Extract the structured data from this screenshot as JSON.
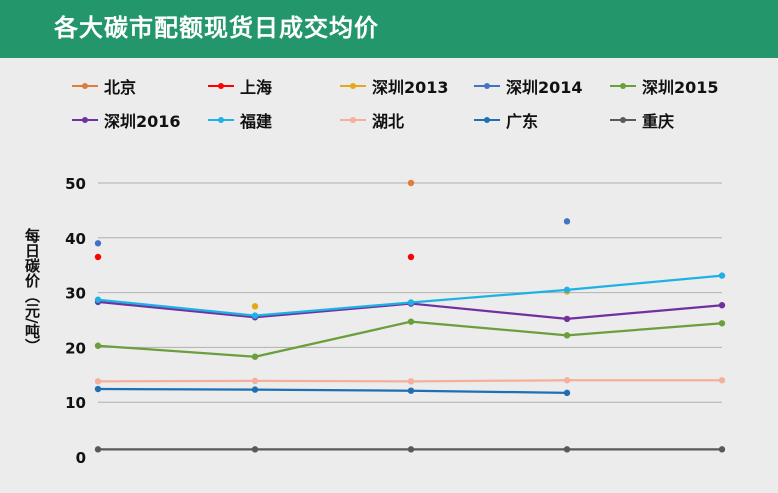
{
  "title": "各大碳市配额现货日成交均价",
  "chart_data": {
    "type": "line",
    "title": "各大碳市配额现货日成交均价",
    "xlabel": "",
    "ylabel": "每日碳价（元/吨）",
    "ylim": [
      0,
      50
    ],
    "yticks": [
      0,
      10,
      20,
      30,
      40,
      50
    ],
    "grid": true,
    "legend_position": "top",
    "x": [
      1,
      2,
      3,
      4,
      5
    ],
    "series": [
      {
        "name": "北京",
        "color": "#e07b39",
        "values": [
          null,
          null,
          50,
          null,
          null
        ]
      },
      {
        "name": "上海",
        "color": "#ff0000",
        "values": [
          36.5,
          null,
          36.5,
          null,
          null
        ]
      },
      {
        "name": "深圳2013",
        "color": "#e6a817",
        "values": [
          null,
          27.5,
          null,
          30.2,
          null
        ]
      },
      {
        "name": "深圳2014",
        "color": "#4472c4",
        "values": [
          39,
          null,
          null,
          43,
          null
        ]
      },
      {
        "name": "深圳2015",
        "color": "#6b9e3c",
        "values": [
          20.3,
          18.3,
          24.7,
          22.2,
          24.4
        ]
      },
      {
        "name": "深圳2016",
        "color": "#7030a0",
        "values": [
          28.3,
          25.5,
          28,
          25.2,
          27.7
        ]
      },
      {
        "name": "福建",
        "color": "#1fb1e6",
        "values": [
          28.7,
          25.8,
          28.2,
          30.5,
          33.1
        ]
      },
      {
        "name": "湖北",
        "color": "#f4b09a",
        "values": [
          13.8,
          13.9,
          13.8,
          14,
          14
        ]
      },
      {
        "name": "广东",
        "color": "#1f6fb5",
        "values": [
          12.4,
          12.3,
          12.1,
          11.7,
          null
        ]
      },
      {
        "name": "重庆",
        "color": "#595959",
        "values": [
          1.4,
          1.4,
          1.4,
          1.4,
          1.4
        ]
      }
    ]
  }
}
